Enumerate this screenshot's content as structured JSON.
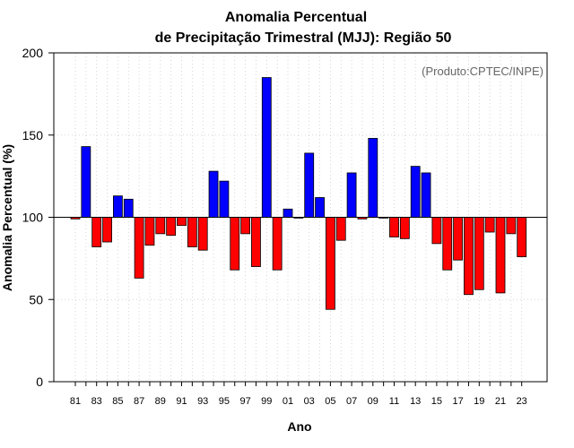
{
  "chart_data": {
    "type": "bar",
    "title_line1": "Anomalia Percentual",
    "title_line2": "de Precipitação Trimestral (MJJ): Região 50",
    "xlabel": "Ano",
    "ylabel": "Anomalia Percentual (%)",
    "credit": "(Produto:CPTEC/INPE)",
    "ylim": [
      0,
      200
    ],
    "yticks": [
      0,
      50,
      100,
      150,
      200
    ],
    "baseline": 100,
    "categories": [
      "81",
      "82",
      "83",
      "84",
      "85",
      "86",
      "87",
      "88",
      "89",
      "90",
      "91",
      "92",
      "93",
      "94",
      "95",
      "96",
      "97",
      "98",
      "99",
      "00",
      "01",
      "02",
      "03",
      "04",
      "05",
      "06",
      "07",
      "08",
      "09",
      "10",
      "11",
      "12",
      "13",
      "14",
      "15",
      "16",
      "17",
      "18",
      "19",
      "20",
      "21",
      "22",
      "23"
    ],
    "xtick_labels": [
      "81",
      "83",
      "85",
      "87",
      "89",
      "91",
      "93",
      "95",
      "97",
      "99",
      "01",
      "03",
      "05",
      "07",
      "09",
      "11",
      "13",
      "15",
      "17",
      "19",
      "21",
      "23"
    ],
    "values": [
      99,
      143,
      82,
      85,
      113,
      111,
      63,
      83,
      90,
      89,
      95,
      82,
      80,
      128,
      122,
      68,
      90,
      70,
      185,
      68,
      105,
      99.5,
      139,
      112,
      44,
      86,
      127,
      99,
      148,
      99.5,
      88,
      87,
      131,
      127,
      84,
      68,
      74,
      53,
      56,
      91,
      54,
      90,
      76
    ],
    "colors": {
      "above": "#0000ff",
      "below": "#ff0000",
      "edge": "#000000",
      "grid": "#cccccc"
    }
  }
}
